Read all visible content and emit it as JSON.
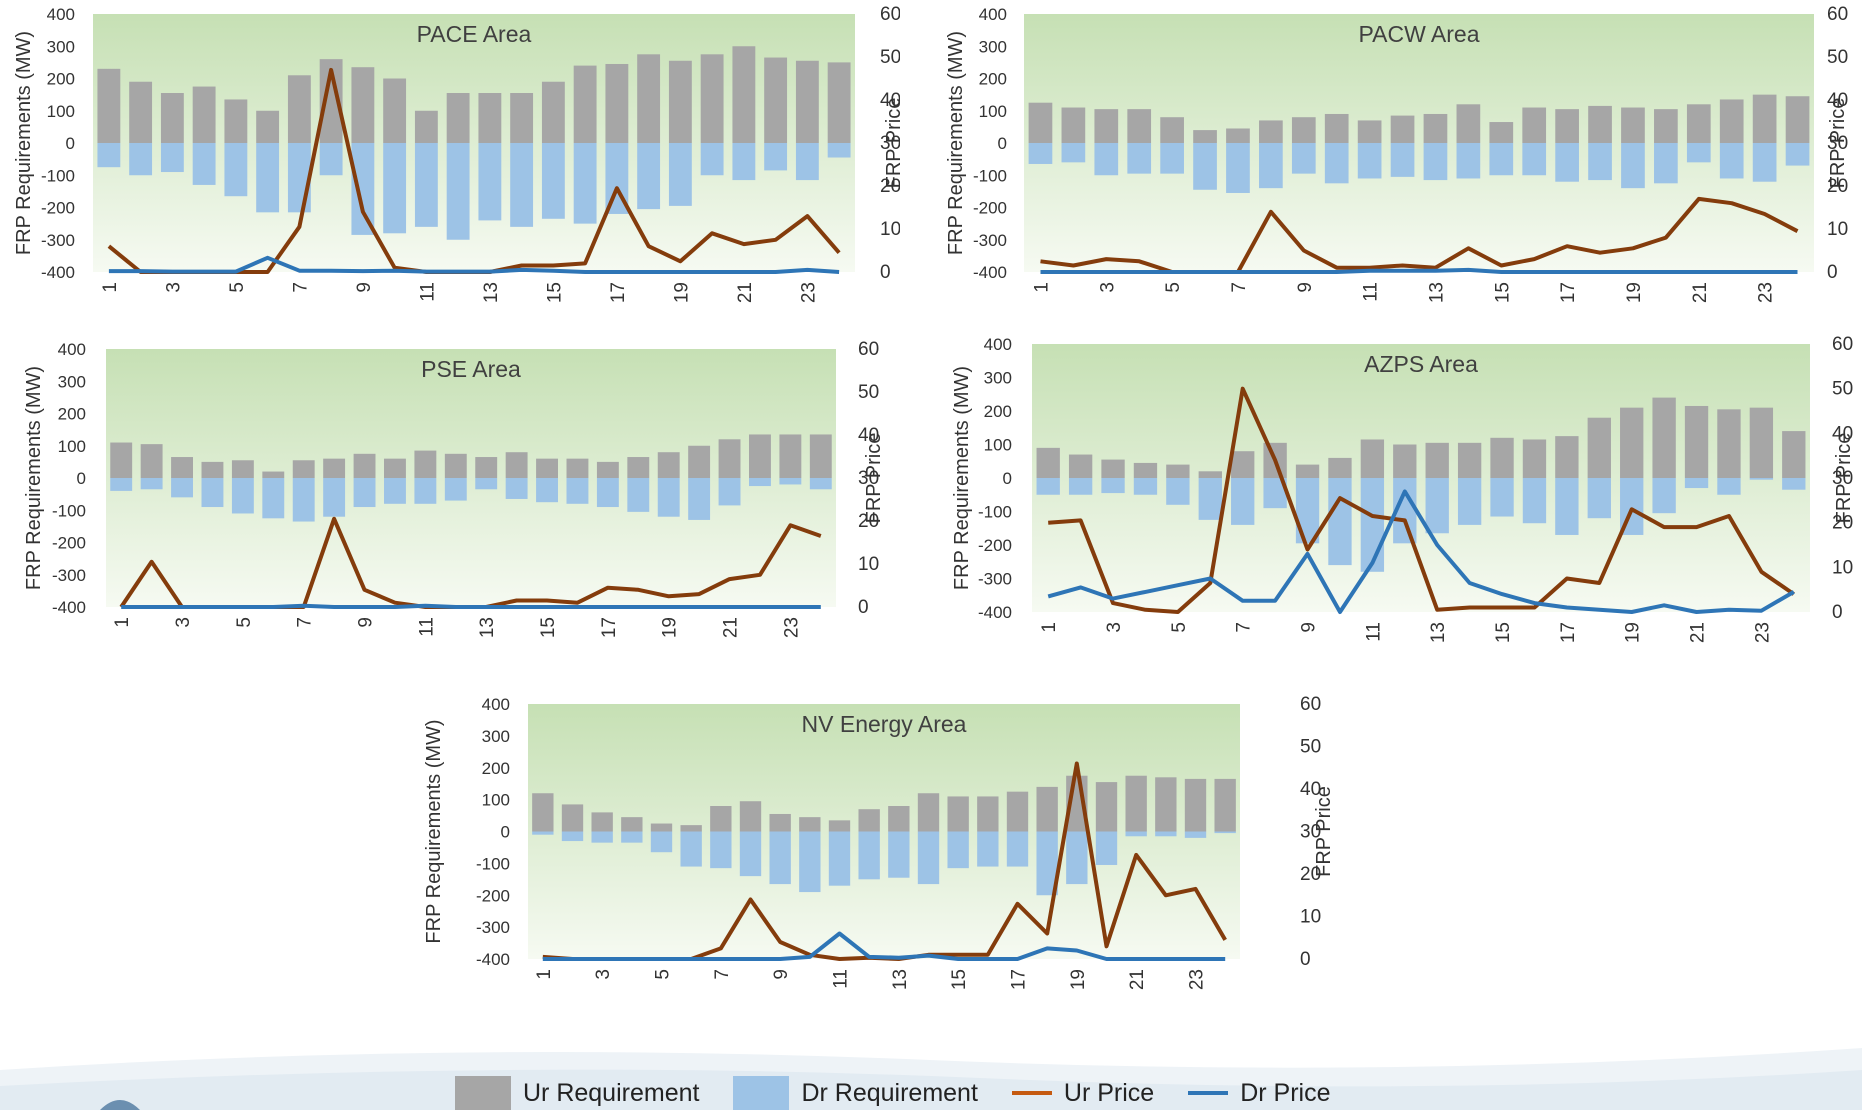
{
  "colors": {
    "ur_requirement": "#a6a6a6",
    "dr_requirement": "#9dc3e6",
    "ur_price": "#843c0c",
    "dr_price": "#2e75b6",
    "plot_bg_top": "#c6e0b4",
    "plot_bg_bottom": "#f6faf2"
  },
  "legend": {
    "ur_requirement": "Ur Requirement",
    "dr_requirement": "Dr Requirement",
    "ur_price": "Ur Price",
    "dr_price": "Dr Price"
  },
  "chart_data": [
    {
      "type": "bar",
      "title": "PACE Area",
      "ylabel": "FRP Requirements (MW)",
      "y2label": "FRP Price",
      "ylim": [
        -400,
        400
      ],
      "y2lim": [
        0,
        60
      ],
      "yticks": [
        400,
        300,
        200,
        100,
        0,
        -100,
        -200,
        -300,
        -400
      ],
      "y2ticks": [
        60,
        50,
        40,
        30,
        20,
        10,
        0
      ],
      "categories": [
        1,
        2,
        3,
        4,
        5,
        6,
        7,
        8,
        9,
        10,
        11,
        12,
        13,
        14,
        15,
        16,
        17,
        18,
        19,
        20,
        21,
        22,
        23,
        24
      ],
      "xtick_labels": [
        "1",
        "3",
        "5",
        "7",
        "9",
        "11",
        "13",
        "15",
        "17",
        "19",
        "21",
        "23"
      ],
      "series": [
        {
          "name": "Ur Requirement",
          "kind": "bar",
          "values": [
            230,
            190,
            155,
            175,
            135,
            100,
            210,
            260,
            235,
            200,
            100,
            155,
            155,
            155,
            190,
            240,
            245,
            275,
            255,
            275,
            300,
            265,
            255,
            250
          ]
        },
        {
          "name": "Dr Requirement",
          "kind": "bar",
          "values": [
            -75,
            -100,
            -90,
            -130,
            -165,
            -215,
            -215,
            -100,
            -285,
            -280,
            -260,
            -300,
            -240,
            -260,
            -235,
            -250,
            -220,
            -205,
            -195,
            -100,
            -115,
            -85,
            -115,
            -45
          ]
        },
        {
          "name": "Ur Price",
          "kind": "line",
          "axis": "right",
          "values": [
            6,
            0,
            0,
            0,
            0,
            0,
            10.5,
            47,
            14,
            1,
            0,
            0,
            0,
            1.5,
            1.5,
            2,
            19.5,
            6,
            2.5,
            9,
            6.5,
            7.5,
            13,
            4.5
          ]
        },
        {
          "name": "Dr Price",
          "kind": "line",
          "axis": "right",
          "values": [
            0.2,
            0.2,
            0.1,
            0.1,
            0.1,
            3.3,
            0.3,
            0.3,
            0.2,
            0.3,
            0.1,
            0.1,
            0.1,
            0.5,
            0.3,
            0,
            0,
            0,
            0,
            0,
            0,
            0,
            0.5,
            0
          ]
        }
      ]
    },
    {
      "type": "bar",
      "title": "PACW Area",
      "ylabel": "FRP Requirements (MW)",
      "y2label": "FRP Price",
      "ylim": [
        -400,
        400
      ],
      "y2lim": [
        0,
        60
      ],
      "yticks": [
        400,
        300,
        200,
        100,
        0,
        -100,
        -200,
        -300,
        -400
      ],
      "y2ticks": [
        60,
        50,
        40,
        30,
        20,
        10,
        0
      ],
      "categories": [
        1,
        2,
        3,
        4,
        5,
        6,
        7,
        8,
        9,
        10,
        11,
        12,
        13,
        14,
        15,
        16,
        17,
        18,
        19,
        20,
        21,
        22,
        23,
        24
      ],
      "xtick_labels": [
        "1",
        "3",
        "5",
        "7",
        "9",
        "11",
        "13",
        "15",
        "17",
        "19",
        "21",
        "23"
      ],
      "series": [
        {
          "name": "Ur Requirement",
          "kind": "bar",
          "values": [
            125,
            110,
            105,
            105,
            80,
            40,
            45,
            70,
            80,
            90,
            70,
            85,
            90,
            120,
            65,
            110,
            105,
            115,
            110,
            105,
            120,
            135,
            150,
            145
          ]
        },
        {
          "name": "Dr Requirement",
          "kind": "bar",
          "values": [
            -65,
            -60,
            -100,
            -95,
            -95,
            -145,
            -155,
            -140,
            -95,
            -125,
            -110,
            -105,
            -115,
            -110,
            -100,
            -100,
            -120,
            -115,
            -140,
            -125,
            -60,
            -110,
            -120,
            -70
          ]
        },
        {
          "name": "Ur Price",
          "kind": "line",
          "axis": "right",
          "values": [
            2.5,
            1.5,
            3,
            2.5,
            0,
            0,
            0,
            14,
            5,
            1,
            1,
            1.5,
            1,
            5.5,
            1.5,
            3,
            6,
            4.5,
            5.5,
            8,
            17,
            16,
            13.5,
            9.5
          ]
        },
        {
          "name": "Dr Price",
          "kind": "line",
          "axis": "right",
          "values": [
            0,
            0,
            0,
            0,
            0,
            0,
            0,
            0,
            0,
            0,
            0.3,
            0.3,
            0.3,
            0.5,
            0,
            0,
            0,
            0,
            0,
            0,
            0,
            0,
            0,
            0
          ]
        }
      ]
    },
    {
      "type": "bar",
      "title": "PSE Area",
      "ylabel": "FRP Requirements (MW)",
      "y2label": "FRP Price",
      "ylim": [
        -400,
        400
      ],
      "y2lim": [
        0,
        60
      ],
      "yticks": [
        400,
        300,
        200,
        100,
        0,
        -100,
        -200,
        -300,
        -400
      ],
      "y2ticks": [
        60,
        50,
        40,
        30,
        20,
        10,
        0
      ],
      "categories": [
        1,
        2,
        3,
        4,
        5,
        6,
        7,
        8,
        9,
        10,
        11,
        12,
        13,
        14,
        15,
        16,
        17,
        18,
        19,
        20,
        21,
        22,
        23,
        24
      ],
      "xtick_labels": [
        "1",
        "3",
        "5",
        "7",
        "9",
        "11",
        "13",
        "15",
        "17",
        "19",
        "21",
        "23"
      ],
      "series": [
        {
          "name": "Ur Requirement",
          "kind": "bar",
          "values": [
            110,
            105,
            65,
            50,
            55,
            20,
            55,
            60,
            75,
            60,
            85,
            75,
            65,
            80,
            60,
            60,
            50,
            65,
            80,
            100,
            120,
            135,
            135,
            135
          ]
        },
        {
          "name": "Dr Requirement",
          "kind": "bar",
          "values": [
            -40,
            -35,
            -60,
            -90,
            -110,
            -125,
            -135,
            -120,
            -90,
            -80,
            -80,
            -70,
            -35,
            -65,
            -75,
            -80,
            -90,
            -105,
            -120,
            -130,
            -85,
            -25,
            -20,
            -35
          ]
        },
        {
          "name": "Ur Price",
          "kind": "line",
          "axis": "right",
          "values": [
            0,
            10.5,
            0,
            0,
            0,
            0,
            0,
            20.5,
            4,
            1,
            0,
            0,
            0,
            1.5,
            1.5,
            1,
            4.5,
            4,
            2.5,
            3,
            6.5,
            7.5,
            19,
            16.5
          ]
        },
        {
          "name": "Dr Price",
          "kind": "line",
          "axis": "right",
          "values": [
            0,
            0,
            0,
            0,
            0,
            0,
            0.3,
            0,
            0,
            0,
            0.3,
            0,
            0,
            0,
            0,
            0,
            0,
            0,
            0,
            0,
            0,
            0,
            0,
            0
          ]
        }
      ]
    },
    {
      "type": "bar",
      "title": "AZPS Area",
      "ylabel": "FRP Requirements (MW)",
      "y2label": "FRP Price",
      "ylim": [
        -400,
        400
      ],
      "y2lim": [
        0,
        60
      ],
      "yticks": [
        400,
        300,
        200,
        100,
        0,
        -100,
        -200,
        -300,
        -400
      ],
      "y2ticks": [
        60,
        50,
        40,
        30,
        20,
        10,
        0
      ],
      "categories": [
        1,
        2,
        3,
        4,
        5,
        6,
        7,
        8,
        9,
        10,
        11,
        12,
        13,
        14,
        15,
        16,
        17,
        18,
        19,
        20,
        21,
        22,
        23,
        24
      ],
      "xtick_labels": [
        "1",
        "3",
        "5",
        "7",
        "9",
        "11",
        "13",
        "15",
        "17",
        "19",
        "21",
        "23"
      ],
      "series": [
        {
          "name": "Ur Requirement",
          "kind": "bar",
          "values": [
            90,
            70,
            55,
            45,
            40,
            20,
            80,
            105,
            40,
            60,
            115,
            100,
            105,
            105,
            120,
            115,
            125,
            180,
            210,
            240,
            215,
            205,
            210,
            140
          ]
        },
        {
          "name": "Dr Requirement",
          "kind": "bar",
          "values": [
            -50,
            -50,
            -45,
            -50,
            -80,
            -125,
            -140,
            -90,
            -195,
            -260,
            -280,
            -195,
            -165,
            -140,
            -115,
            -135,
            -170,
            -120,
            -170,
            -105,
            -30,
            -50,
            -5,
            -35
          ]
        },
        {
          "name": "Ur Price",
          "kind": "line",
          "axis": "right",
          "values": [
            20,
            20.5,
            2,
            0.5,
            0,
            6.5,
            50,
            34,
            14,
            25.5,
            21.5,
            20.5,
            0.5,
            1,
            1,
            1,
            7.5,
            6.5,
            23,
            19,
            19,
            21.5,
            9,
            4
          ]
        },
        {
          "name": "Dr Price",
          "kind": "line",
          "axis": "right",
          "values": [
            3.5,
            5.5,
            3,
            4.5,
            6,
            7.5,
            2.5,
            2.5,
            13,
            0,
            11,
            27,
            15,
            6.5,
            4,
            2,
            1,
            0.5,
            0,
            1.5,
            0,
            0.5,
            0.3,
            4.5
          ]
        }
      ]
    },
    {
      "type": "bar",
      "title": "NV Energy Area",
      "ylabel": "FRP Requirements (MW)",
      "y2label": "FRP Price",
      "ylim": [
        -400,
        400
      ],
      "y2lim": [
        0,
        60
      ],
      "yticks": [
        400,
        300,
        200,
        100,
        0,
        -100,
        -200,
        -300,
        -400
      ],
      "y2ticks": [
        60,
        50,
        40,
        30,
        20,
        10,
        0
      ],
      "categories": [
        1,
        2,
        3,
        4,
        5,
        6,
        7,
        8,
        9,
        10,
        11,
        12,
        13,
        14,
        15,
        16,
        17,
        18,
        19,
        20,
        21,
        22,
        23,
        24
      ],
      "xtick_labels": [
        "1",
        "3",
        "5",
        "7",
        "9",
        "11",
        "13",
        "15",
        "17",
        "19",
        "21",
        "23"
      ],
      "series": [
        {
          "name": "Ur Requirement",
          "kind": "bar",
          "values": [
            120,
            85,
            60,
            45,
            25,
            20,
            80,
            95,
            55,
            45,
            35,
            70,
            80,
            120,
            110,
            110,
            125,
            140,
            175,
            155,
            175,
            170,
            165,
            165
          ]
        },
        {
          "name": "Dr Requirement",
          "kind": "bar",
          "values": [
            -10,
            -30,
            -35,
            -35,
            -65,
            -110,
            -115,
            -140,
            -165,
            -190,
            -170,
            -150,
            -145,
            -165,
            -115,
            -110,
            -110,
            -200,
            -165,
            -105,
            -15,
            -15,
            -20,
            -5
          ]
        },
        {
          "name": "Ur Price",
          "kind": "line",
          "axis": "right",
          "values": [
            0.5,
            0,
            0,
            0,
            0,
            0,
            2.5,
            14,
            4,
            1,
            0,
            0.3,
            0,
            1,
            1,
            1,
            13,
            6,
            46,
            3,
            24.5,
            15,
            16.5,
            4.5
          ]
        },
        {
          "name": "Dr Price",
          "kind": "line",
          "axis": "right",
          "values": [
            0,
            0,
            0,
            0,
            0,
            0,
            0,
            0,
            0,
            0.5,
            6,
            0.5,
            0.3,
            0.8,
            0,
            0,
            0,
            2.5,
            2,
            0,
            0,
            0,
            0,
            0
          ]
        }
      ]
    }
  ]
}
